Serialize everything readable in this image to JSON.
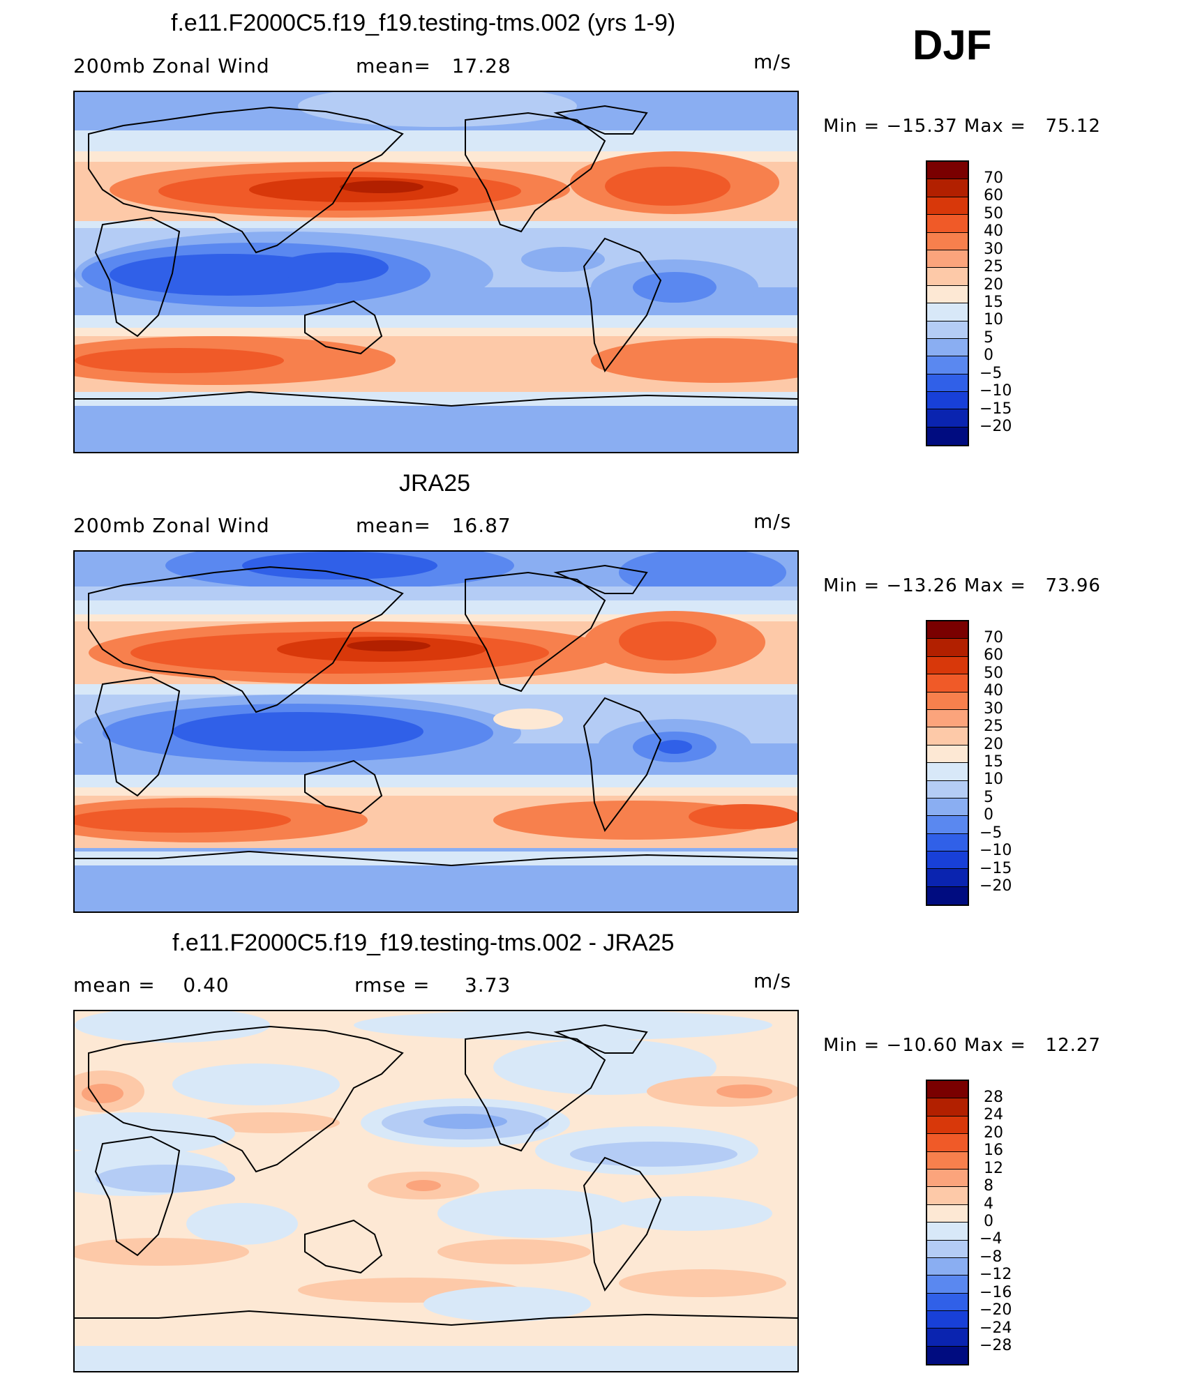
{
  "header": {
    "season": "DJF"
  },
  "panels": [
    {
      "title": "f.e11.F2000C5.f19_f19.testing-tms.002 (yrs 1-9)",
      "left_label": "200mb Zonal Wind",
      "center_label": "mean=   17.28",
      "units": "m/s",
      "minmax": "Min = −15.37 Max =   75.12",
      "colorbar_ticks": [
        "70",
        "60",
        "50",
        "40",
        "30",
        "25",
        "20",
        "15",
        "10",
        "5",
        "0",
        "−5",
        "−10",
        "−15",
        "−20"
      ]
    },
    {
      "title": "JRA25",
      "left_label": "200mb Zonal Wind",
      "center_label": "mean=   16.87",
      "units": "m/s",
      "minmax": "Min = −13.26 Max =   73.96",
      "colorbar_ticks": [
        "70",
        "60",
        "50",
        "40",
        "30",
        "25",
        "20",
        "15",
        "10",
        "5",
        "0",
        "−5",
        "−10",
        "−15",
        "−20"
      ]
    },
    {
      "title": "f.e11.F2000C5.f19_f19.testing-tms.002 - JRA25",
      "left_label": "mean =    0.40",
      "center_label": "rmse =     3.73",
      "units": "m/s",
      "minmax": "Min = −10.60 Max =   12.27",
      "colorbar_ticks": [
        "28",
        "24",
        "20",
        "16",
        "12",
        "8",
        "4",
        "0",
        "−4",
        "−8",
        "−12",
        "−16",
        "−20",
        "−24",
        "−28"
      ]
    }
  ],
  "colors": {
    "abs_scale": [
      "#7a0000",
      "#b22000",
      "#d8380a",
      "#f05a28",
      "#f7804d",
      "#fba47c",
      "#fdc9a8",
      "#fde8d4",
      "#d8e8f8",
      "#b4ccf5",
      "#8aaef2",
      "#5a88f0",
      "#3060e8",
      "#1840d8",
      "#0a24b0",
      "#000c80"
    ],
    "diff_scale": [
      "#7a0000",
      "#b22000",
      "#d8380a",
      "#f05a28",
      "#f7804d",
      "#fba47c",
      "#fdc9a8",
      "#fde8d4",
      "#d8e8f8",
      "#b4ccf5",
      "#8aaef2",
      "#5a88f0",
      "#3060e8",
      "#1840d8",
      "#0a24b0",
      "#000c80"
    ]
  }
}
